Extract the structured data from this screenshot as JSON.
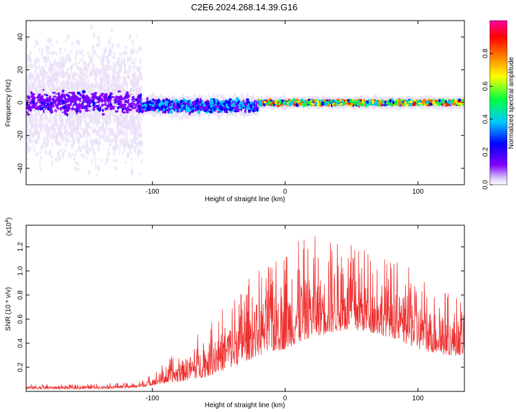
{
  "title": "C2E6.2024.268.14.39.G16",
  "chart_data": [
    {
      "type": "heatmap",
      "xlabel": "Height of straight line (km)",
      "ylabel": "Frequency (Hz)",
      "xlim": [
        -195,
        135
      ],
      "ylim": [
        -50,
        50
      ],
      "x_ticks": [
        -100,
        0,
        100
      ],
      "y_ticks": [
        -40,
        -20,
        0,
        20,
        40
      ],
      "colorbar": {
        "label": "Normalized spectral amplitude",
        "range": [
          0,
          1
        ],
        "ticks": [
          0.0,
          0.2,
          0.4,
          0.6,
          0.8
        ],
        "tick_labels": [
          "0.0",
          "0.2",
          "0.4",
          "0.6",
          "0.8"
        ],
        "colormap": [
          "#e8e0f8",
          "#8000ff",
          "#0000ff",
          "#00c8ff",
          "#00ff40",
          "#ffff00",
          "#ff8000",
          "#ff0000",
          "#ff00a0"
        ]
      },
      "bands": [
        {
          "x_range": [
            -195,
            -108
          ],
          "center": 0,
          "width_core": 8,
          "scatter_spread": 50,
          "amplitude": 0.25
        },
        {
          "x_range": [
            -108,
            -20
          ],
          "center": -2,
          "width_core": 5,
          "scatter_spread": 8,
          "amplitude": 0.45
        },
        {
          "x_range": [
            -20,
            135
          ],
          "center": 0,
          "width_core": 2,
          "scatter_spread": 4,
          "amplitude": 0.85
        }
      ]
    },
    {
      "type": "line",
      "xlabel": "Height of straight line (km)",
      "ylabel": "SNR (10 * v/v)",
      "scale_label": "(x10",
      "scale_exponent": "4",
      "scale_close": ")",
      "xlim": [
        -195,
        135
      ],
      "ylim": [
        0,
        1.38
      ],
      "x_ticks": [
        -100,
        0,
        100
      ],
      "y_ticks": [
        0.2,
        0.4,
        0.6,
        0.8,
        1.0,
        1.2
      ],
      "y_tick_labels": [
        "0.2",
        "0.4",
        "0.6",
        "0.8",
        "1.0",
        "1.2"
      ],
      "color": "#ee3030",
      "envelope": [
        [
          -195,
          0.02,
          0.06
        ],
        [
          -150,
          0.02,
          0.06
        ],
        [
          -110,
          0.03,
          0.08
        ],
        [
          -100,
          0.05,
          0.15
        ],
        [
          -80,
          0.08,
          0.35
        ],
        [
          -60,
          0.12,
          0.55
        ],
        [
          -40,
          0.2,
          0.8
        ],
        [
          -20,
          0.3,
          1.05
        ],
        [
          0,
          0.35,
          1.2
        ],
        [
          20,
          0.45,
          1.3
        ],
        [
          40,
          0.5,
          1.25
        ],
        [
          60,
          0.5,
          1.2
        ],
        [
          80,
          0.45,
          1.1
        ],
        [
          100,
          0.35,
          1.0
        ],
        [
          120,
          0.3,
          0.85
        ],
        [
          135,
          0.3,
          0.75
        ]
      ]
    }
  ]
}
